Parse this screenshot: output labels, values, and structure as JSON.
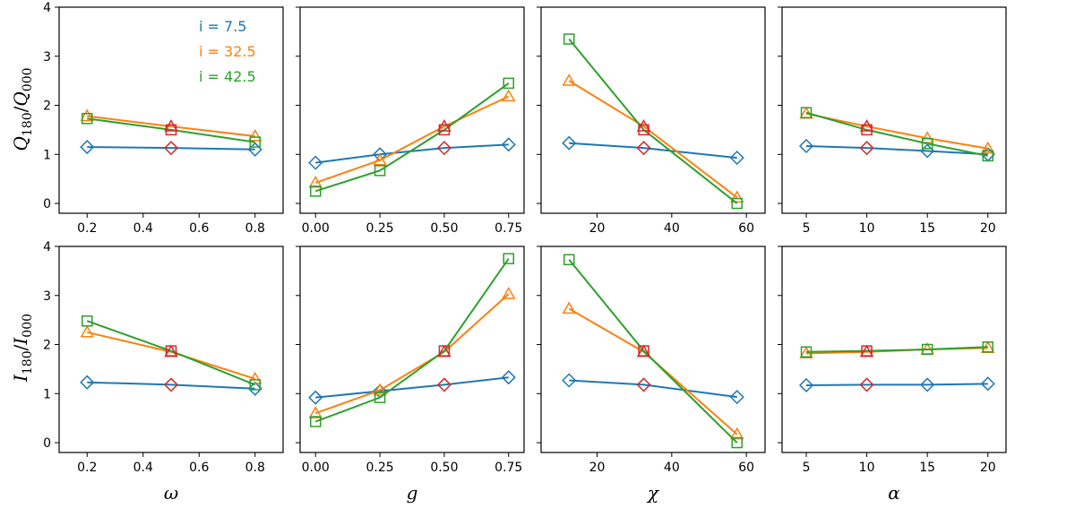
{
  "colors": {
    "blue": "#1f77b4",
    "orange": "#ff7f0e",
    "green": "#2ca02c",
    "red": "#d62728"
  },
  "legend": [
    {
      "text": "i = 7.5",
      "color": "#1f77b4"
    },
    {
      "text": "i = 32.5",
      "color": "#ff7f0e"
    },
    {
      "text": "i = 42.5",
      "color": "#2ca02c"
    }
  ],
  "row_labels": {
    "top": {
      "main": "Q",
      "sub1": "180",
      "sep": "/",
      "main2": "Q",
      "sub2": "000"
    },
    "bottom": {
      "main": "I",
      "sub1": "180",
      "sep": "/",
      "main2": "I",
      "sub2": "000"
    }
  },
  "chart_data": [
    {
      "type": "line",
      "row": 0,
      "col": 0,
      "xlabel": "ω",
      "ylabel": "Q180/Q000",
      "x": [
        0.2,
        0.5,
        0.8
      ],
      "xlim": [
        0.1,
        0.9
      ],
      "ylim": [
        -0.2,
        4
      ],
      "xticks": [
        "0.2",
        "0.4",
        "0.6",
        "0.8"
      ],
      "xtick_values": [
        0.2,
        0.4,
        0.6,
        0.8
      ],
      "yticks": [
        "0",
        "1",
        "2",
        "3",
        "4"
      ],
      "ytick_values": [
        0,
        1,
        2,
        3,
        4
      ],
      "series": [
        {
          "name": "i = 7.5",
          "color": "#1f77b4",
          "marker": "diamond",
          "values": [
            1.15,
            1.13,
            1.1
          ]
        },
        {
          "name": "i = 32.5",
          "color": "#ff7f0e",
          "marker": "triangle",
          "values": [
            1.78,
            1.57,
            1.37
          ]
        },
        {
          "name": "i = 42.5",
          "color": "#2ca02c",
          "marker": "square",
          "values": [
            1.73,
            1.5,
            1.25
          ]
        }
      ],
      "highlight": {
        "color": "#d62728",
        "x": 0.5,
        "points": [
          1.13,
          1.57,
          1.5
        ]
      }
    },
    {
      "type": "line",
      "row": 0,
      "col": 1,
      "xlabel": "g",
      "ylabel": "",
      "x": [
        0.0,
        0.25,
        0.5,
        0.75
      ],
      "xlim": [
        -0.06,
        0.81
      ],
      "ylim": [
        -0.2,
        4
      ],
      "xticks": [
        "0.00",
        "0.25",
        "0.50",
        "0.75"
      ],
      "xtick_values": [
        0,
        0.25,
        0.5,
        0.75
      ],
      "yticks": [],
      "ytick_values": [
        0,
        1,
        2,
        3,
        4
      ],
      "series": [
        {
          "name": "i = 7.5",
          "color": "#1f77b4",
          "marker": "diamond",
          "values": [
            0.83,
            1.0,
            1.13,
            1.2
          ]
        },
        {
          "name": "i = 32.5",
          "color": "#ff7f0e",
          "marker": "triangle",
          "values": [
            0.42,
            0.88,
            1.57,
            2.18
          ]
        },
        {
          "name": "i = 42.5",
          "color": "#2ca02c",
          "marker": "square",
          "values": [
            0.25,
            0.67,
            1.5,
            2.45
          ]
        }
      ],
      "highlight": {
        "color": "#d62728",
        "x": 0.5,
        "points": [
          1.13,
          1.57,
          1.5
        ]
      }
    },
    {
      "type": "line",
      "row": 0,
      "col": 2,
      "xlabel": "χ",
      "ylabel": "",
      "x": [
        12.5,
        32.5,
        57.5
      ],
      "xlim": [
        5,
        65
      ],
      "ylim": [
        -0.2,
        4
      ],
      "xticks": [
        "20",
        "40",
        "60"
      ],
      "xtick_values": [
        20,
        40,
        60
      ],
      "yticks": [],
      "ytick_values": [
        0,
        1,
        2,
        3,
        4
      ],
      "series": [
        {
          "name": "i = 7.5",
          "color": "#1f77b4",
          "marker": "diamond",
          "values": [
            1.23,
            1.13,
            0.93
          ]
        },
        {
          "name": "i = 32.5",
          "color": "#ff7f0e",
          "marker": "triangle",
          "values": [
            2.5,
            1.57,
            0.12
          ]
        },
        {
          "name": "i = 42.5",
          "color": "#2ca02c",
          "marker": "square",
          "values": [
            3.35,
            1.5,
            0.0
          ]
        }
      ],
      "highlight": {
        "color": "#d62728",
        "x": 32.5,
        "points": [
          1.13,
          1.57,
          1.5
        ]
      }
    },
    {
      "type": "line",
      "row": 0,
      "col": 3,
      "xlabel": "α",
      "ylabel": "",
      "x": [
        5,
        10,
        15,
        20
      ],
      "xlim": [
        3,
        21.5
      ],
      "ylim": [
        -0.2,
        4
      ],
      "xticks": [
        "5",
        "10",
        "15",
        "20"
      ],
      "xtick_values": [
        5,
        10,
        15,
        20
      ],
      "yticks": [],
      "ytick_values": [
        0,
        1,
        2,
        3,
        4
      ],
      "series": [
        {
          "name": "i = 7.5",
          "color": "#1f77b4",
          "marker": "diamond",
          "values": [
            1.17,
            1.13,
            1.07,
            1.0
          ]
        },
        {
          "name": "i = 32.5",
          "color": "#ff7f0e",
          "marker": "triangle",
          "values": [
            1.83,
            1.57,
            1.33,
            1.12
          ]
        },
        {
          "name": "i = 42.5",
          "color": "#2ca02c",
          "marker": "square",
          "values": [
            1.85,
            1.5,
            1.22,
            0.97
          ]
        }
      ],
      "highlight": {
        "color": "#d62728",
        "x": 10,
        "points": [
          1.13,
          1.57,
          1.5
        ]
      }
    },
    {
      "type": "line",
      "row": 1,
      "col": 0,
      "xlabel": "ω",
      "ylabel": "I180/I000",
      "x": [
        0.2,
        0.5,
        0.8
      ],
      "xlim": [
        0.1,
        0.9
      ],
      "ylim": [
        -0.2,
        4
      ],
      "xticks": [
        "0.2",
        "0.4",
        "0.6",
        "0.8"
      ],
      "xtick_values": [
        0.2,
        0.4,
        0.6,
        0.8
      ],
      "yticks": [
        "0",
        "1",
        "2",
        "3",
        "4"
      ],
      "ytick_values": [
        0,
        1,
        2,
        3,
        4
      ],
      "series": [
        {
          "name": "i = 7.5",
          "color": "#1f77b4",
          "marker": "diamond",
          "values": [
            1.23,
            1.18,
            1.1
          ]
        },
        {
          "name": "i = 32.5",
          "color": "#ff7f0e",
          "marker": "triangle",
          "values": [
            2.25,
            1.85,
            1.3
          ]
        },
        {
          "name": "i = 42.5",
          "color": "#2ca02c",
          "marker": "square",
          "values": [
            2.48,
            1.87,
            1.18
          ]
        }
      ],
      "highlight": {
        "color": "#d62728",
        "x": 0.5,
        "points": [
          1.18,
          1.85,
          1.87
        ]
      }
    },
    {
      "type": "line",
      "row": 1,
      "col": 1,
      "xlabel": "g",
      "ylabel": "",
      "x": [
        0.0,
        0.25,
        0.5,
        0.75
      ],
      "xlim": [
        -0.06,
        0.81
      ],
      "ylim": [
        -0.2,
        4
      ],
      "xticks": [
        "0.00",
        "0.25",
        "0.50",
        "0.75"
      ],
      "xtick_values": [
        0,
        0.25,
        0.5,
        0.75
      ],
      "yticks": [],
      "ytick_values": [
        0,
        1,
        2,
        3,
        4
      ],
      "series": [
        {
          "name": "i = 7.5",
          "color": "#1f77b4",
          "marker": "diamond",
          "values": [
            0.92,
            1.05,
            1.18,
            1.33
          ]
        },
        {
          "name": "i = 32.5",
          "color": "#ff7f0e",
          "marker": "triangle",
          "values": [
            0.6,
            1.07,
            1.85,
            3.03
          ]
        },
        {
          "name": "i = 42.5",
          "color": "#2ca02c",
          "marker": "square",
          "values": [
            0.43,
            0.92,
            1.87,
            3.75
          ]
        }
      ],
      "highlight": {
        "color": "#d62728",
        "x": 0.5,
        "points": [
          1.18,
          1.85,
          1.87
        ]
      }
    },
    {
      "type": "line",
      "row": 1,
      "col": 2,
      "xlabel": "χ",
      "ylabel": "",
      "x": [
        12.5,
        32.5,
        57.5
      ],
      "xlim": [
        5,
        65
      ],
      "ylim": [
        -0.2,
        4
      ],
      "xticks": [
        "20",
        "40",
        "60"
      ],
      "xtick_values": [
        20,
        40,
        60
      ],
      "yticks": [],
      "ytick_values": [
        0,
        1,
        2,
        3,
        4
      ],
      "series": [
        {
          "name": "i = 7.5",
          "color": "#1f77b4",
          "marker": "diamond",
          "values": [
            1.27,
            1.18,
            0.93
          ]
        },
        {
          "name": "i = 32.5",
          "color": "#ff7f0e",
          "marker": "triangle",
          "values": [
            2.73,
            1.85,
            0.17
          ]
        },
        {
          "name": "i = 42.5",
          "color": "#2ca02c",
          "marker": "square",
          "values": [
            3.73,
            1.87,
            0.0
          ]
        }
      ],
      "highlight": {
        "color": "#d62728",
        "x": 32.5,
        "points": [
          1.18,
          1.85,
          1.87
        ]
      }
    },
    {
      "type": "line",
      "row": 1,
      "col": 3,
      "xlabel": "α",
      "ylabel": "",
      "x": [
        5,
        10,
        15,
        20
      ],
      "xlim": [
        3,
        21.5
      ],
      "ylim": [
        -0.2,
        4
      ],
      "xticks": [
        "5",
        "10",
        "15",
        "20"
      ],
      "xtick_values": [
        5,
        10,
        15,
        20
      ],
      "yticks": [],
      "ytick_values": [
        0,
        1,
        2,
        3,
        4
      ],
      "series": [
        {
          "name": "i = 7.5",
          "color": "#1f77b4",
          "marker": "diamond",
          "values": [
            1.17,
            1.18,
            1.18,
            1.2
          ]
        },
        {
          "name": "i = 32.5",
          "color": "#ff7f0e",
          "marker": "triangle",
          "values": [
            1.82,
            1.85,
            1.9,
            1.93
          ]
        },
        {
          "name": "i = 42.5",
          "color": "#2ca02c",
          "marker": "square",
          "values": [
            1.85,
            1.87,
            1.9,
            1.95
          ]
        }
      ],
      "highlight": {
        "color": "#d62728",
        "x": 10,
        "points": [
          1.18,
          1.85,
          1.87
        ]
      }
    }
  ]
}
